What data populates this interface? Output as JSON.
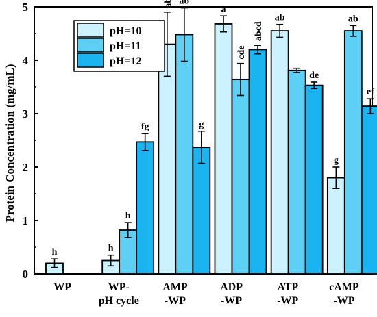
{
  "chart_data": {
    "type": "bar",
    "ylabel": "Protein Concentration (mg/mL)",
    "xlabel": "",
    "ylim": [
      0,
      5
    ],
    "yticks": [
      0,
      1,
      2,
      3,
      4,
      5
    ],
    "categories": [
      [
        "WP"
      ],
      [
        "WP-",
        "pH cycle"
      ],
      [
        "AMP",
        "-WP"
      ],
      [
        "ADP",
        "-WP"
      ],
      [
        "ATP",
        "-WP"
      ],
      [
        "cAMP",
        "-WP"
      ]
    ],
    "series": [
      {
        "name": "pH=10",
        "color": "#ccf1ff",
        "values": [
          0.2,
          0.25,
          4.3,
          4.68,
          4.55,
          1.8
        ],
        "errors": [
          0.08,
          0.1,
          0.6,
          0.15,
          0.12,
          0.2
        ],
        "labels": [
          "h",
          "h",
          "abc",
          "a",
          "ab",
          "g"
        ]
      },
      {
        "name": "pH=11",
        "color": "#5fd0f5",
        "values": [
          null,
          0.82,
          4.48,
          3.64,
          3.81,
          4.55
        ],
        "errors": [
          null,
          0.14,
          0.5,
          0.3,
          0.04,
          0.1
        ],
        "labels": [
          "",
          "h",
          "ab",
          "cde",
          "",
          "ab"
        ]
      },
      {
        "name": "pH=12",
        "color": "#1ab4f0",
        "values": [
          null,
          2.47,
          2.37,
          4.2,
          3.53,
          3.14
        ],
        "errors": [
          null,
          0.16,
          0.3,
          0.08,
          0.06,
          0.14
        ],
        "labels": [
          "",
          "fg",
          "g",
          "abcd",
          "de",
          "ef"
        ]
      }
    ],
    "legend": {
      "position": "top-left"
    },
    "grid": false
  }
}
